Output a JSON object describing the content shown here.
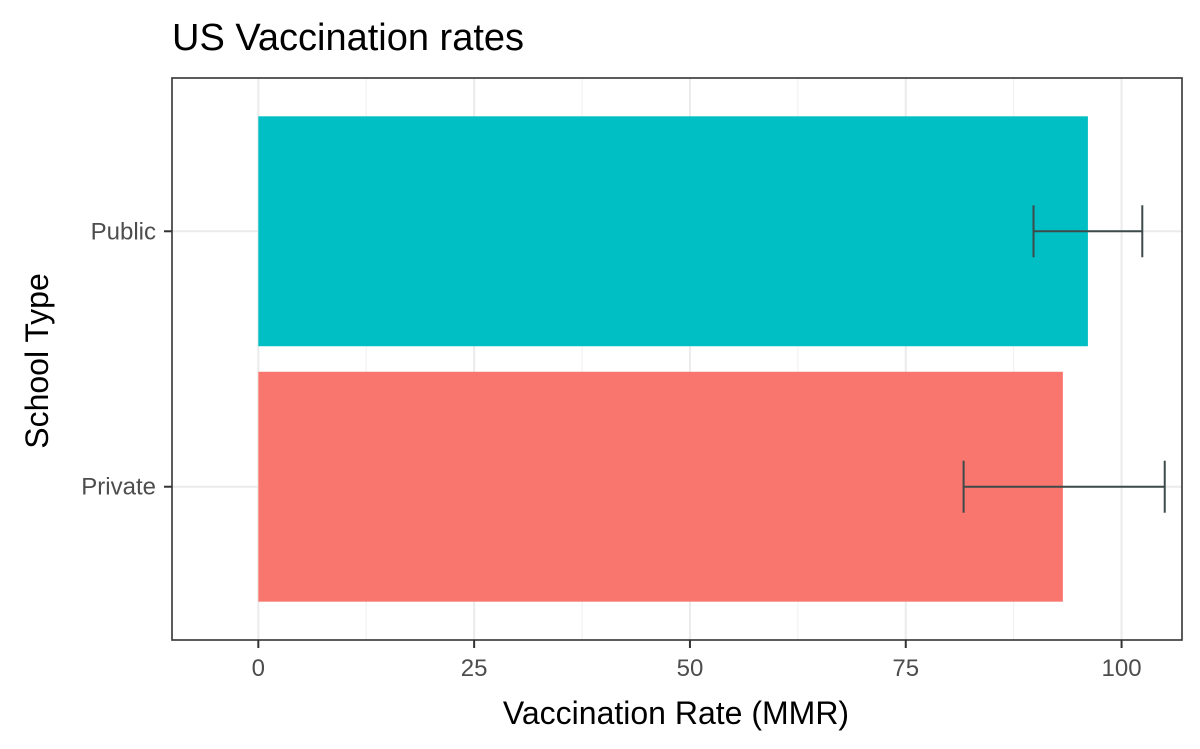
{
  "chart_data": {
    "type": "bar",
    "orientation": "horizontal",
    "title": "US Vaccination rates",
    "xlabel": "Vaccination Rate (MMR)",
    "ylabel": "School Type",
    "categories": [
      "Private",
      "Public"
    ],
    "values": [
      93.2,
      96.1
    ],
    "error_low": [
      81.7,
      89.8
    ],
    "error_high": [
      105.0,
      102.4
    ],
    "bar_colors": [
      "#F8766D",
      "#00BFC4"
    ],
    "xlim": [
      -10,
      107
    ],
    "xticks": [
      0,
      25,
      50,
      75,
      100
    ],
    "xtick_labels": [
      "0",
      "25",
      "50",
      "75",
      "100"
    ],
    "grid": true,
    "legend": "none"
  }
}
